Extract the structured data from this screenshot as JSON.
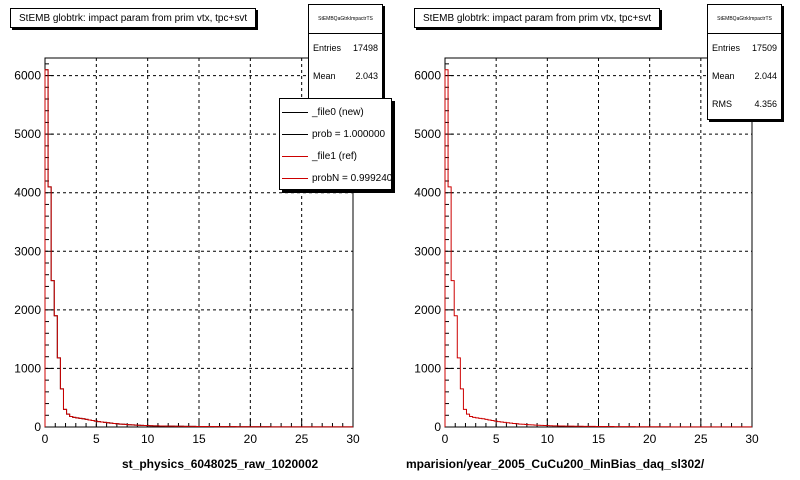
{
  "colors": {
    "new_series": "#000000",
    "ref_series": "#cc0000",
    "grid": "#000000"
  },
  "panels": [
    {
      "title": "StEMB globtrk: impact param from prim vtx, tpc+svt",
      "stats": {
        "name": "StEMBQaGtrkImpactrTS",
        "entries_label": "Entries",
        "entries": "17498",
        "mean_label": "Mean",
        "mean": "2.043"
      },
      "xlabel": "st_physics_6048025_raw_1020002",
      "legend": {
        "entries": [
          {
            "label": "_file0 (new)",
            "color": "#000000"
          },
          {
            "label": "prob = 1.000000",
            "color": "#000000"
          },
          {
            "label": "_file1 (ref)",
            "color": "#cc0000"
          },
          {
            "label": "probN = 0.999240",
            "color": "#cc0000"
          }
        ]
      }
    },
    {
      "title": "StEMB globtrk: impact param from prim vtx, tpc+svt",
      "stats": {
        "name": "StEMBQaGtrkImpactrTS",
        "entries_label": "Entries",
        "entries": "17509",
        "mean_label": "Mean",
        "mean": "2.044",
        "rms_label": "RMS",
        "rms": "4.356"
      },
      "xlabel": "mparision/year_2005_CuCu200_MinBias_daq_sl302/"
    }
  ],
  "chart_data": [
    {
      "type": "histogram",
      "title": "StEMB globtrk: impact param from prim vtx, tpc+svt",
      "xlabel": "st_physics_6048025_raw_1020002",
      "xlim": [
        0,
        30
      ],
      "ylim": [
        0,
        6300
      ],
      "xticks": [
        0,
        5,
        10,
        15,
        20,
        25,
        30
      ],
      "yticks": [
        0,
        1000,
        2000,
        3000,
        4000,
        5000,
        6000
      ],
      "grid": true,
      "bin_width": 0.3,
      "bin_edges_start": 0,
      "series": [
        {
          "name": "_file0 (new)",
          "values": [
            6100,
            4100,
            2500,
            1900,
            1180,
            650,
            300,
            220,
            180,
            165,
            155,
            148,
            140,
            130,
            120,
            110,
            100,
            92,
            85,
            78,
            72,
            66,
            60,
            55,
            50,
            46,
            42,
            39,
            36,
            33,
            30,
            28,
            26,
            24,
            22,
            20,
            19,
            18,
            17,
            16,
            15,
            14,
            13,
            12,
            12,
            11,
            11,
            10,
            10,
            9,
            9,
            9,
            8,
            8,
            8,
            7,
            7,
            7,
            6,
            6,
            6,
            6,
            5,
            5,
            5,
            5,
            5,
            4,
            4,
            4,
            4,
            4,
            4,
            3,
            3,
            3,
            3,
            3,
            3,
            3,
            3,
            3,
            2,
            2,
            2,
            2,
            2,
            2,
            2,
            2,
            2,
            2,
            2,
            2,
            2,
            2,
            2,
            2,
            2,
            2
          ]
        },
        {
          "name": "_file1 (ref)",
          "values": [
            6100,
            4100,
            2500,
            1900,
            1180,
            650,
            300,
            220,
            180,
            165,
            155,
            148,
            140,
            130,
            120,
            110,
            100,
            92,
            85,
            78,
            72,
            66,
            60,
            55,
            50,
            46,
            42,
            39,
            36,
            33,
            30,
            28,
            26,
            24,
            22,
            20,
            19,
            18,
            17,
            16,
            15,
            14,
            13,
            12,
            12,
            11,
            11,
            10,
            10,
            9,
            9,
            9,
            8,
            8,
            8,
            7,
            7,
            7,
            6,
            6,
            6,
            6,
            5,
            5,
            5,
            5,
            5,
            4,
            4,
            4,
            4,
            4,
            4,
            3,
            3,
            3,
            3,
            3,
            3,
            3,
            3,
            3,
            2,
            2,
            2,
            2,
            2,
            2,
            2,
            2,
            2,
            2,
            2,
            2,
            2,
            2,
            2,
            2,
            2,
            2
          ]
        }
      ]
    },
    {
      "type": "histogram",
      "title": "StEMB globtrk: impact param from prim vtx, tpc+svt",
      "xlabel": "mparision/year_2005_CuCu200_MinBias_daq_sl302/",
      "xlim": [
        0,
        30
      ],
      "ylim": [
        0,
        6300
      ],
      "xticks": [
        0,
        5,
        10,
        15,
        20,
        25,
        30
      ],
      "yticks": [
        0,
        1000,
        2000,
        3000,
        4000,
        5000,
        6000
      ],
      "grid": true,
      "bin_width": 0.3,
      "bin_edges_start": 0,
      "series": [
        {
          "name": "_file1 (ref)",
          "values": [
            6100,
            4100,
            2500,
            1900,
            1180,
            650,
            300,
            220,
            180,
            165,
            155,
            148,
            140,
            130,
            120,
            110,
            100,
            92,
            85,
            78,
            72,
            66,
            60,
            55,
            50,
            46,
            42,
            39,
            36,
            33,
            30,
            28,
            26,
            24,
            22,
            20,
            19,
            18,
            17,
            16,
            15,
            14,
            13,
            12,
            12,
            11,
            11,
            10,
            10,
            9,
            9,
            9,
            8,
            8,
            8,
            7,
            7,
            7,
            6,
            6,
            6,
            6,
            5,
            5,
            5,
            5,
            5,
            4,
            4,
            4,
            4,
            4,
            4,
            3,
            3,
            3,
            3,
            3,
            3,
            3,
            3,
            3,
            2,
            2,
            2,
            2,
            2,
            2,
            2,
            2,
            2,
            2,
            2,
            2,
            2,
            2,
            2,
            2,
            2,
            2
          ]
        }
      ]
    }
  ]
}
